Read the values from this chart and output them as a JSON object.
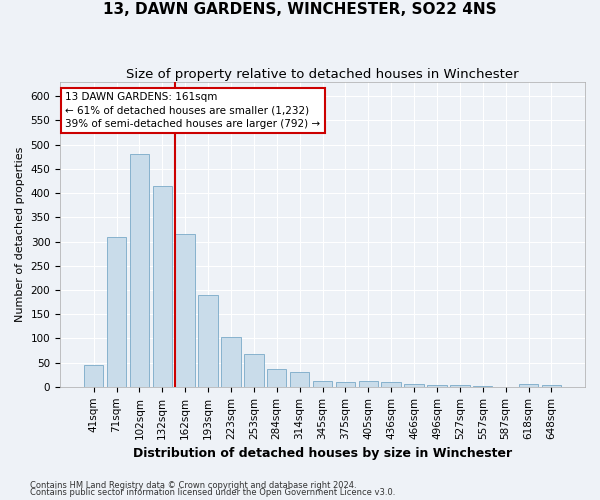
{
  "title": "13, DAWN GARDENS, WINCHESTER, SO22 4NS",
  "subtitle": "Size of property relative to detached houses in Winchester",
  "xlabel": "Distribution of detached houses by size in Winchester",
  "ylabel": "Number of detached properties",
  "categories": [
    "41sqm",
    "71sqm",
    "102sqm",
    "132sqm",
    "162sqm",
    "193sqm",
    "223sqm",
    "253sqm",
    "284sqm",
    "314sqm",
    "345sqm",
    "375sqm",
    "405sqm",
    "436sqm",
    "466sqm",
    "496sqm",
    "527sqm",
    "557sqm",
    "587sqm",
    "618sqm",
    "648sqm"
  ],
  "values": [
    45,
    310,
    480,
    415,
    315,
    190,
    102,
    68,
    37,
    30,
    13,
    10,
    12,
    10,
    5,
    4,
    3,
    2,
    0,
    5,
    3
  ],
  "bar_color": "#c9dcea",
  "bar_edge_color": "#7aaac8",
  "red_line_index": 4,
  "annotation_text": "13 DAWN GARDENS: 161sqm\n← 61% of detached houses are smaller (1,232)\n39% of semi-detached houses are larger (792) →",
  "annotation_box_color": "#ffffff",
  "annotation_box_edge_color": "#cc0000",
  "footnote1": "Contains HM Land Registry data © Crown copyright and database right 2024.",
  "footnote2": "Contains public sector information licensed under the Open Government Licence v3.0.",
  "ylim": [
    0,
    630
  ],
  "yticks": [
    0,
    50,
    100,
    150,
    200,
    250,
    300,
    350,
    400,
    450,
    500,
    550,
    600
  ],
  "title_fontsize": 11,
  "subtitle_fontsize": 9.5,
  "xlabel_fontsize": 9,
  "ylabel_fontsize": 8,
  "tick_fontsize": 7.5,
  "annotation_fontsize": 7.5,
  "footnote_fontsize": 6,
  "bg_color": "#eef2f7",
  "grid_color": "#ffffff",
  "red_line_color": "#cc0000"
}
